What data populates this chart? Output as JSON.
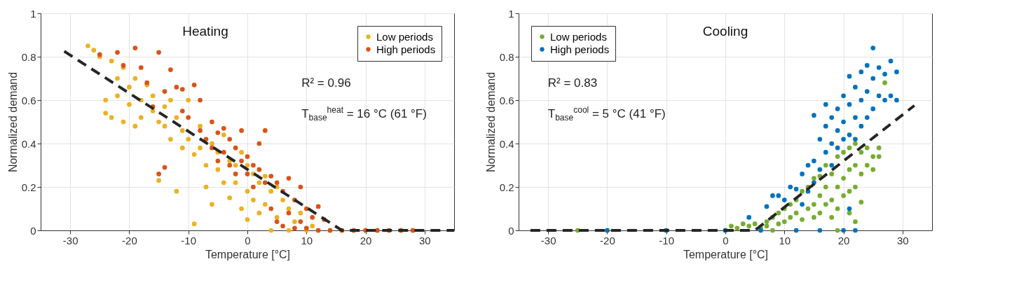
{
  "chart_data": [
    {
      "type": "scatter",
      "title": "Heating",
      "xlabel": "Temperature [°C]",
      "ylabel": "Normalized demand",
      "xlim": [
        -35,
        35
      ],
      "ylim": [
        0,
        1
      ],
      "xticks": [
        -30,
        -20,
        -10,
        0,
        10,
        20,
        30
      ],
      "yticks": [
        0,
        0.2,
        0.4,
        0.6,
        0.8,
        1
      ],
      "grid": true,
      "legend": "top right",
      "marker": "circle",
      "annotations": [
        "R² = 0.96",
        "T$_{base}$$^{heat}$ = 16 °C (61 °F)"
      ],
      "series": [
        {
          "name": "Low periods",
          "color": "#edb120",
          "x": [
            -27,
            -26,
            -25,
            -24,
            -24,
            -23,
            -23,
            -22,
            -22,
            -21,
            -21,
            -20,
            -20,
            -19,
            -19,
            -18,
            -18,
            -17,
            -16,
            -16,
            -15,
            -15,
            -14,
            -14,
            -13,
            -13,
            -12,
            -12,
            -11,
            -11,
            -10,
            -10,
            -9,
            -9,
            -8,
            -8,
            -7,
            -7,
            -6,
            -6,
            -5,
            -5,
            -4,
            -4,
            -3,
            -3,
            -2,
            -2,
            -1,
            -1,
            0,
            0,
            0,
            1,
            1,
            2,
            2,
            3,
            3,
            4,
            4,
            5,
            5,
            6,
            7,
            7,
            8,
            9,
            10,
            11,
            12,
            14,
            16,
            18,
            20,
            22,
            24,
            26,
            28
          ],
          "values": [
            0.85,
            0.83,
            0.8,
            0.54,
            0.6,
            0.78,
            0.52,
            0.7,
            0.62,
            0.5,
            0.75,
            0.66,
            0.58,
            0.48,
            0.7,
            0.6,
            0.52,
            0.67,
            0.55,
            0.62,
            0.5,
            0.23,
            0.57,
            0.48,
            0.6,
            0.42,
            0.18,
            0.52,
            0.46,
            0.38,
            0.6,
            0.42,
            0.35,
            0.03,
            0.48,
            0.38,
            0.3,
            0.2,
            0.4,
            0.12,
            0.36,
            0.28,
            0.44,
            0.22,
            0.32,
            0.15,
            0.3,
            0.22,
            0.36,
            0.1,
            0.3,
            0.18,
            0.05,
            0.26,
            0.14,
            0.22,
            0.08,
            0.25,
            0.12,
            0.18,
            0,
            0.2,
            0.06,
            0.14,
            0.1,
            0,
            0.04,
            0.08,
            0,
            0.02,
            0,
            0,
            0,
            0,
            0,
            0,
            0,
            0,
            0
          ]
        },
        {
          "name": "High periods",
          "color": "#d95319",
          "x": [
            -25,
            -22,
            -21,
            -19,
            -18,
            -17,
            -16,
            -15,
            -14,
            -13,
            -12,
            -11,
            -11,
            -10,
            -9,
            -8,
            -8,
            -7,
            -6,
            -6,
            -5,
            -5,
            -4,
            -4,
            -3,
            -3,
            -2,
            -2,
            -1,
            -1,
            0,
            0,
            1,
            1,
            2,
            2,
            3,
            3,
            4,
            4,
            5,
            5,
            6,
            6,
            7,
            7,
            8,
            8,
            9,
            9,
            10,
            10,
            11,
            12,
            12,
            13,
            14,
            16,
            18,
            20,
            22,
            24,
            26,
            28,
            -14,
            -15
          ],
          "values": [
            0.81,
            0.82,
            0.76,
            0.84,
            0.75,
            0.68,
            0.57,
            0.82,
            0.64,
            0.74,
            0.66,
            0.65,
            0.55,
            0.52,
            0.67,
            0.6,
            0.46,
            0.42,
            0.5,
            0.38,
            0.45,
            0.32,
            0.47,
            0.36,
            0.42,
            0.3,
            0.38,
            0.26,
            0.46,
            0.32,
            0.34,
            0.26,
            0.3,
            0.2,
            0.28,
            0.4,
            0.46,
            0.22,
            0.25,
            0.1,
            0.22,
            0.04,
            0.18,
            0.02,
            0.24,
            0.08,
            0.14,
            0.01,
            0.2,
            0.04,
            0.1,
            0.01,
            0.06,
            0.11,
            0,
            0.05,
            0,
            0,
            0,
            0,
            0,
            0,
            0,
            0,
            0.29,
            0.26
          ]
        },
        {
          "type": "line",
          "color": "#262626",
          "line_style": "dashed",
          "marker": "none",
          "x": [
            -31,
            16,
            35
          ],
          "values": [
            0.825,
            0,
            0
          ]
        }
      ]
    },
    {
      "type": "scatter",
      "title": "Cooling",
      "xlabel": "Temperature [°C]",
      "ylabel": "Normalized demand",
      "xlim": [
        -35,
        35
      ],
      "ylim": [
        0,
        1
      ],
      "xticks": [
        -30,
        -20,
        -10,
        0,
        10,
        20,
        30
      ],
      "yticks": [
        0,
        0.2,
        0.4,
        0.6,
        0.8,
        1
      ],
      "grid": true,
      "legend": "top left",
      "marker": "circle",
      "annotations": [
        "R² = 0.83",
        "T$_{base}$$^{cool}$ = 5 °C (41 °F)"
      ],
      "series": [
        {
          "name": "Low periods",
          "color": "#77ac30",
          "x": [
            -25,
            -20,
            -10,
            0,
            1,
            2,
            3,
            4,
            5,
            6,
            7,
            7,
            8,
            8,
            9,
            9,
            10,
            10,
            11,
            11,
            12,
            12,
            13,
            13,
            14,
            14,
            15,
            15,
            15,
            16,
            16,
            16,
            17,
            17,
            17,
            18,
            18,
            18,
            19,
            19,
            19,
            20,
            20,
            20,
            21,
            21,
            21,
            21,
            22,
            22,
            22,
            23,
            23,
            23,
            24,
            24,
            25,
            25,
            26,
            26,
            27,
            22,
            19
          ],
          "values": [
            0,
            0,
            0,
            0,
            0.02,
            0.01,
            0.03,
            0.02,
            0.03,
            0.01,
            0.04,
            0.02,
            0.06,
            0,
            0.08,
            0.03,
            0.1,
            0.04,
            0.12,
            0.06,
            0.14,
            0.08,
            0.18,
            0.05,
            0.2,
            0.1,
            0.24,
            0.12,
            0.06,
            0.25,
            0.16,
            0.08,
            0.3,
            0.2,
            0.12,
            0.26,
            0.14,
            0.06,
            0.34,
            0.2,
            0.1,
            0.36,
            0.24,
            0.16,
            0.38,
            0.28,
            0.18,
            0.08,
            0.4,
            0.3,
            0.2,
            0.36,
            0.26,
            0.13,
            0.38,
            0.3,
            0.34,
            0.28,
            0.34,
            0.38,
            0.68,
            0.04,
            0
          ]
        },
        {
          "name": "High periods",
          "color": "#0072bd",
          "x": [
            -20,
            -10,
            0,
            4,
            6,
            7,
            8,
            9,
            10,
            11,
            12,
            13,
            13,
            14,
            14,
            15,
            15,
            15,
            16,
            16,
            17,
            17,
            17,
            18,
            18,
            18,
            19,
            19,
            19,
            20,
            20,
            20,
            21,
            21,
            21,
            21,
            22,
            22,
            22,
            23,
            23,
            23,
            24,
            24,
            24,
            25,
            25,
            25,
            26,
            26,
            27,
            27,
            28,
            28,
            29,
            29,
            12,
            16,
            20,
            22
          ],
          "values": [
            0,
            0,
            0,
            0.06,
            0,
            0.11,
            0.16,
            0.16,
            0.14,
            0.2,
            0.19,
            0.26,
            0.12,
            0.3,
            0.18,
            0.53,
            0.32,
            0.22,
            0.42,
            0.28,
            0.48,
            0.36,
            0.58,
            0.52,
            0.4,
            0.3,
            0.46,
            0.56,
            0.38,
            0.62,
            0.5,
            0.42,
            0.71,
            0.58,
            0.44,
            0.1,
            0.66,
            0.52,
            0.42,
            0.73,
            0.6,
            0.48,
            0.76,
            0.64,
            0.52,
            0.84,
            0.7,
            0.56,
            0.75,
            0.62,
            0.72,
            0.6,
            0.78,
            0.62,
            0.73,
            0.6,
            0,
            0,
            0,
            0
          ]
        },
        {
          "type": "line",
          "color": "#262626",
          "line_style": "dashed",
          "marker": "none",
          "x": [
            -33,
            5,
            32
          ],
          "values": [
            0,
            0,
            0.575
          ]
        }
      ]
    }
  ]
}
